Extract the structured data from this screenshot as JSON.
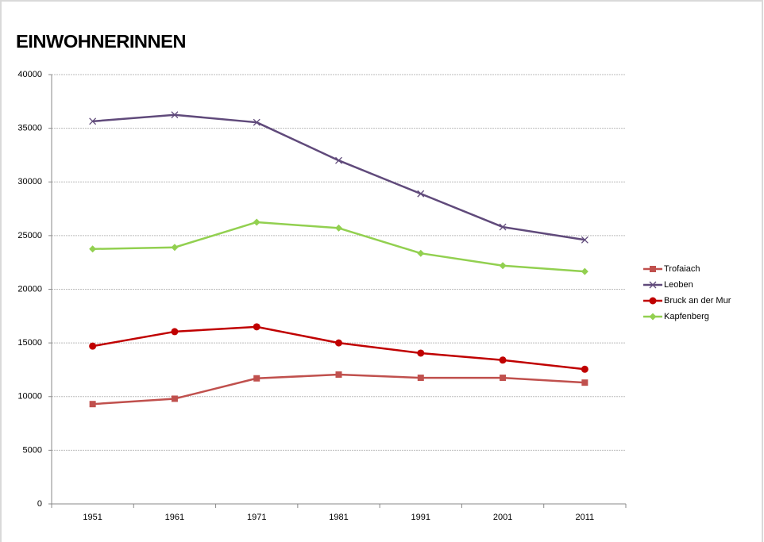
{
  "chart_data": {
    "type": "line",
    "title": "EINWOHNERINNEN",
    "categories": [
      "1951",
      "1961",
      "1971",
      "1981",
      "1991",
      "2001",
      "2011"
    ],
    "series": [
      {
        "name": "Trofaiach",
        "color": "#c0504d",
        "marker": "square",
        "values": [
          9300,
          9800,
          11700,
          12050,
          11750,
          11750,
          11300
        ]
      },
      {
        "name": "Leoben",
        "color": "#604a7b",
        "marker": "x",
        "values": [
          35650,
          36250,
          35550,
          32000,
          28900,
          25800,
          24600
        ]
      },
      {
        "name": "Bruck an der Mur",
        "color": "#c00000",
        "marker": "circle",
        "values": [
          14700,
          16050,
          16500,
          15000,
          14050,
          13400,
          12550
        ]
      },
      {
        "name": "Kapfenberg",
        "color": "#92d050",
        "marker": "diamond",
        "values": [
          23750,
          23900,
          26250,
          25700,
          23350,
          22200,
          21650
        ]
      }
    ],
    "ylim": [
      0,
      40000
    ],
    "yticks": [
      0,
      5000,
      10000,
      15000,
      20000,
      25000,
      30000,
      35000,
      40000
    ],
    "grid": true,
    "legend": "right"
  }
}
